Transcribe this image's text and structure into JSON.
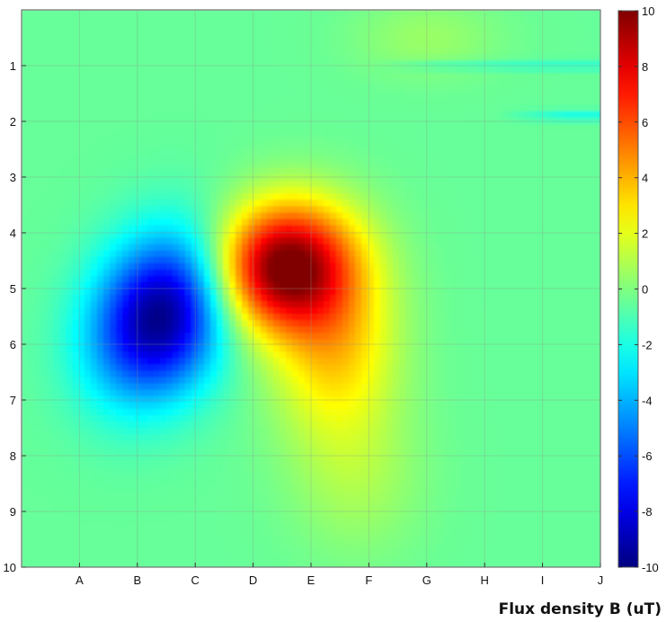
{
  "chart_data": {
    "type": "heatmap",
    "title": "",
    "xlabel": "",
    "ylabel": "",
    "x_categories": [
      "A",
      "B",
      "C",
      "D",
      "E",
      "F",
      "G",
      "H",
      "I",
      "J"
    ],
    "y_ticks": [
      "1",
      "2",
      "3",
      "4",
      "5",
      "6",
      "7",
      "8",
      "9",
      "10"
    ],
    "colorbar": {
      "ticks": [
        "10",
        "8",
        "6",
        "4",
        "2",
        "0",
        "-2",
        "-4",
        "-6",
        "-8",
        "-10"
      ],
      "range": [
        -10,
        10
      ],
      "colormap": "jet",
      "caption": "Flux density B (uT)"
    },
    "grid": true,
    "features": [
      {
        "kind": "minimum",
        "x": 2.4,
        "y": 5.5,
        "value": -10
      },
      {
        "kind": "maximum",
        "x": 4.5,
        "y": 4.6,
        "value": 10
      },
      {
        "kind": "lobe",
        "x": 5.4,
        "y": 6.0,
        "value": 4
      },
      {
        "kind": "stripe",
        "y": 1.0,
        "x_from": 6.0,
        "value": -1.5
      },
      {
        "kind": "stripe",
        "y": 1.9,
        "x_from": 8.2,
        "value": -2
      }
    ],
    "background_value": -0.5
  }
}
